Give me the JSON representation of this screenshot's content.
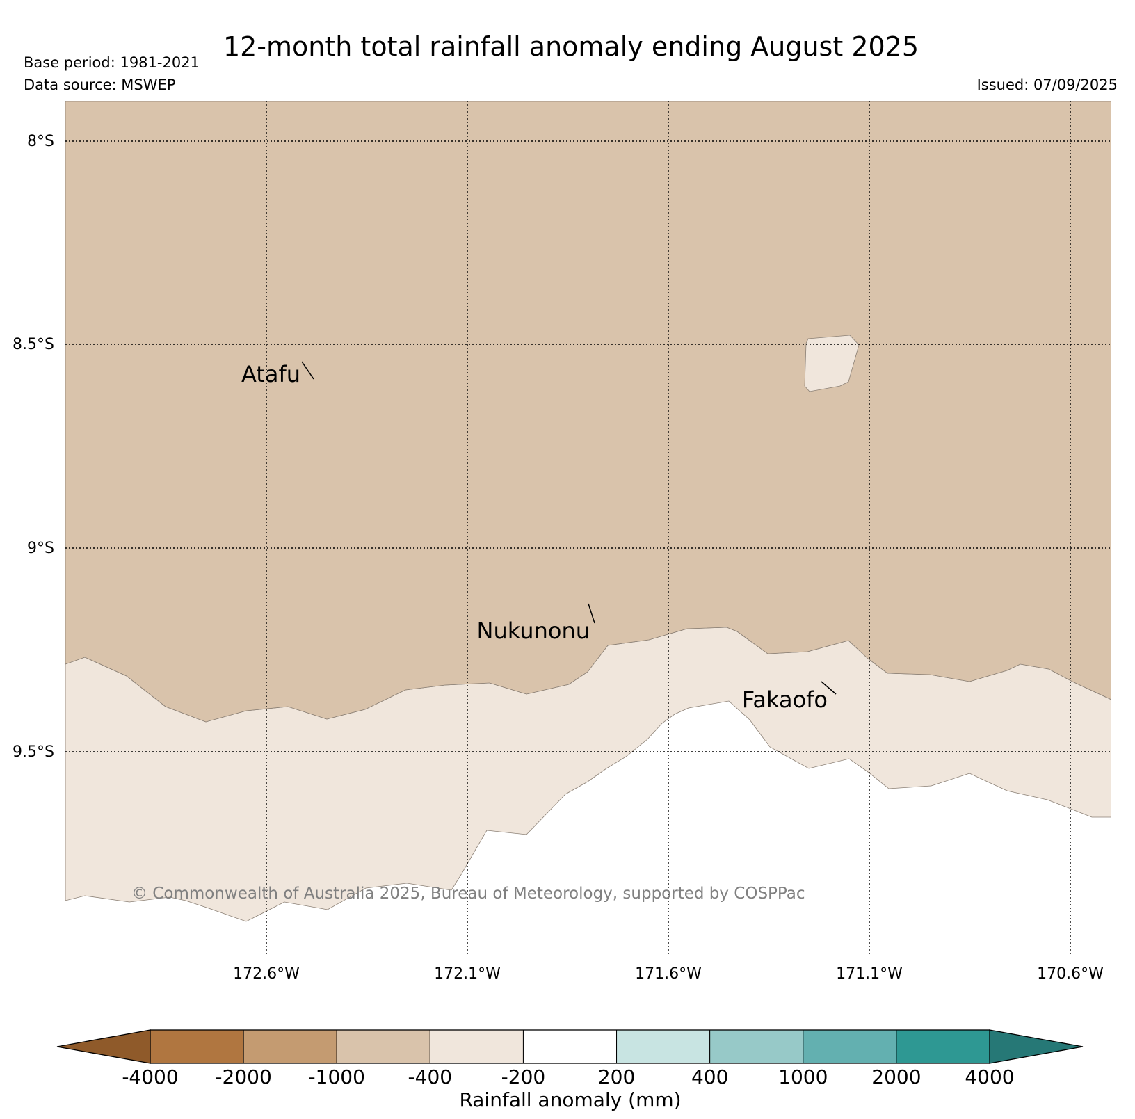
{
  "header": {
    "title": "12-month total rainfall anomaly ending August 2025",
    "base_period": "Base period: 1981-2021",
    "data_source": "Data source: MSWEP",
    "issued": "Issued: 07/09/2025"
  },
  "map": {
    "lat_labels": [
      "8°S",
      "8.5°S",
      "9°S",
      "9.5°S"
    ],
    "lon_labels": [
      "172.6°W",
      "172.1°W",
      "171.6°W",
      "171.1°W",
      "170.6°W"
    ],
    "places": [
      {
        "name": "Atafu"
      },
      {
        "name": "Nukunonu"
      },
      {
        "name": "Fakaofo"
      }
    ],
    "copyright": "© Commonwealth of Australia 2025, Bureau of Meteorology, supported by COSPPac",
    "region_colors": {
      "class_-1000_-400": "#d9c3ab",
      "class_-400_-200": "#f0e6dc",
      "class_-200_200": "#ffffff"
    }
  },
  "colorbar": {
    "label": "Rainfall anomaly (mm)",
    "ticks": [
      "-4000",
      "-2000",
      "-1000",
      "-400",
      "-200",
      "200",
      "400",
      "1000",
      "2000",
      "4000"
    ],
    "low_extend_color": "#8f5a2a",
    "high_extend_color": "#267876",
    "colors": [
      "#b07640",
      "#c49b71",
      "#d9c3ab",
      "#f0e6dc",
      "#ffffff",
      "#c8e4e2",
      "#97c9c8",
      "#63b0b0",
      "#2e9893"
    ]
  }
}
